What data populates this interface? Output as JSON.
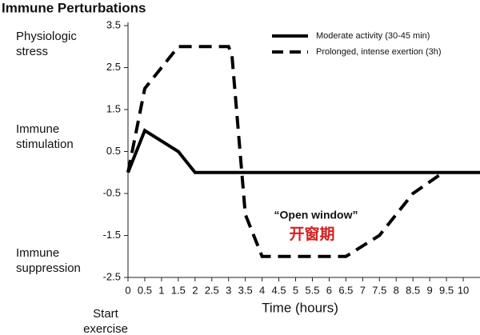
{
  "chart_data": {
    "type": "line",
    "title": "Immune Perturbations",
    "x_label": "Time (hours)",
    "side_labels": [
      [
        "Physiologic",
        "stress"
      ],
      [
        "Immune",
        "stimulation"
      ],
      [
        "Immune",
        "suppression"
      ],
      [
        "Start",
        "exercise"
      ]
    ],
    "annotations": [
      "“Open window”",
      "开窗期"
    ],
    "series": [
      {
        "name": "Moderate activity (30-45 min)",
        "color": "#000000",
        "dash": false,
        "x": [
          0,
          0.5,
          1.5,
          2,
          10.5
        ],
        "values": [
          0,
          1,
          0.5,
          0,
          0
        ]
      },
      {
        "name": "Prolonged, intense exertion (3h)",
        "color": "#000000",
        "dash": true,
        "x": [
          0,
          0.5,
          1.5,
          3,
          3.1,
          3.5,
          4,
          6.5,
          7.5,
          8.5,
          9.4
        ],
        "values": [
          0,
          2,
          3,
          3,
          2.8,
          -1,
          -2,
          -2,
          -1.5,
          -0.5,
          0
        ]
      }
    ],
    "xlim": [
      0,
      10.5
    ],
    "xticks": [
      0,
      0.5,
      1,
      1.5,
      2,
      2.5,
      3,
      3.5,
      4,
      4.5,
      5,
      5.5,
      6,
      6.5,
      7,
      7.5,
      8,
      8.5,
      9,
      9.5,
      10
    ],
    "ylim": [
      -2.5,
      3.5
    ],
    "yticks": [
      3.5,
      2.5,
      1.5,
      0.5,
      -0.5,
      -1.5,
      -2.5
    ],
    "grid": false
  }
}
